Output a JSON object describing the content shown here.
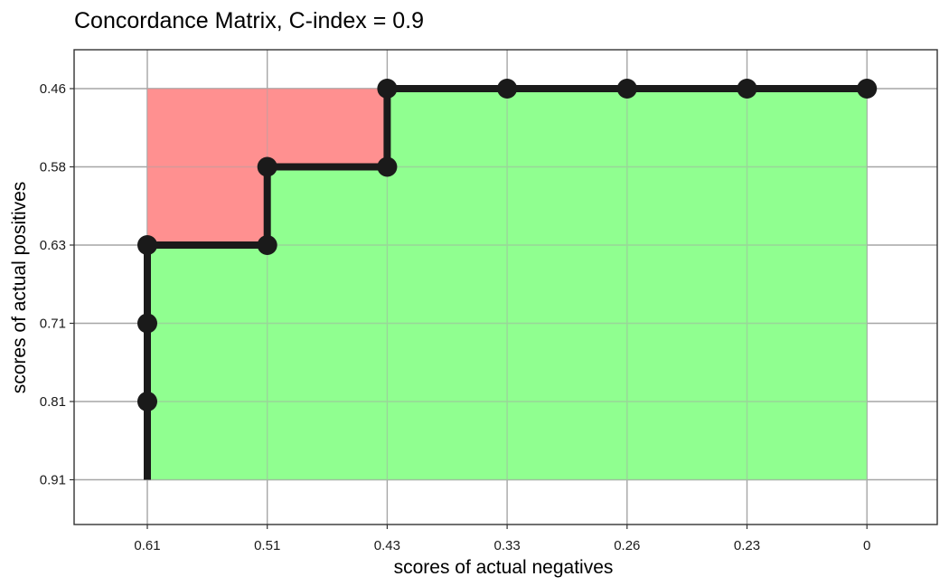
{
  "chart_data": {
    "type": "line",
    "title": "Concordance Matrix, C-index = 0.9",
    "xlabel": "scores of actual negatives",
    "ylabel": "scores of actual positives",
    "x_ticks": [
      "0.61",
      "0.51",
      "0.43",
      "0.33",
      "0.26",
      "0.23",
      "0"
    ],
    "y_ticks": [
      "0.46",
      "0.58",
      "0.63",
      "0.71",
      "0.81",
      "0.91"
    ],
    "grid": true,
    "concordant_color": "#90FF90",
    "discordant_color": "#FF9090",
    "path_color": "#1a1a1a",
    "path": [
      {
        "x": "0.61",
        "y": "0.91"
      },
      {
        "x": "0.61",
        "y": "0.81"
      },
      {
        "x": "0.61",
        "y": "0.71"
      },
      {
        "x": "0.61",
        "y": "0.63"
      },
      {
        "x": "0.51",
        "y": "0.63"
      },
      {
        "x": "0.51",
        "y": "0.58"
      },
      {
        "x": "0.43",
        "y": "0.58"
      },
      {
        "x": "0.43",
        "y": "0.46"
      },
      {
        "x": "0.33",
        "y": "0.46"
      },
      {
        "x": "0.26",
        "y": "0.46"
      },
      {
        "x": "0.23",
        "y": "0.46"
      },
      {
        "x": "0",
        "y": "0.46"
      }
    ],
    "points": [
      {
        "x": "0.61",
        "y": "0.81"
      },
      {
        "x": "0.61",
        "y": "0.71"
      },
      {
        "x": "0.61",
        "y": "0.63"
      },
      {
        "x": "0.51",
        "y": "0.63"
      },
      {
        "x": "0.51",
        "y": "0.58"
      },
      {
        "x": "0.43",
        "y": "0.58"
      },
      {
        "x": "0.43",
        "y": "0.46"
      },
      {
        "x": "0.33",
        "y": "0.46"
      },
      {
        "x": "0.26",
        "y": "0.46"
      },
      {
        "x": "0.23",
        "y": "0.46"
      },
      {
        "x": "0",
        "y": "0.46"
      }
    ]
  }
}
